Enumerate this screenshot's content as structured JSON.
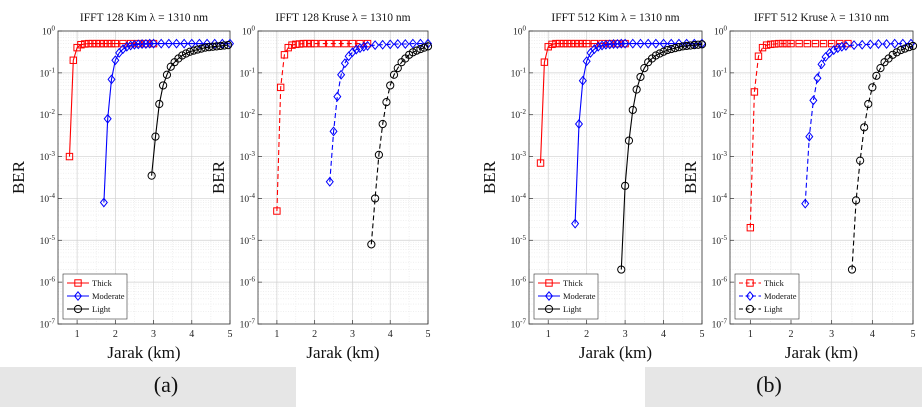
{
  "captions": [
    "(a)",
    "(b)"
  ],
  "chart_data": [
    {
      "type": "line",
      "title": "IFFT 128 Kim λ = 1310 nm",
      "xlabel": "Jarak (km)",
      "ylabel": "BER",
      "xlim": [
        0.5,
        5
      ],
      "ylim": [
        1e-07,
        1
      ],
      "yscale": "log",
      "xticks": [
        "1",
        "2",
        "3",
        "4",
        "5"
      ],
      "yticks": [
        "10^-7",
        "10^-6",
        "10^-5",
        "10^-4",
        "10^-3",
        "10^-2",
        "10^-1",
        "10^0"
      ],
      "grid": true,
      "legend_position": "bottom-left",
      "series": [
        {
          "name": "Thick",
          "color": "#ff0000",
          "marker": "square",
          "dash": "solid",
          "x": [
            0.8,
            0.9,
            1.0,
            1.1,
            1.2,
            1.3,
            1.4,
            1.5,
            1.6,
            1.7,
            1.8,
            1.9,
            2.0,
            2.2,
            2.4,
            2.6,
            2.8,
            3.0
          ],
          "y": [
            0.001,
            0.2,
            0.4,
            0.47,
            0.49,
            0.5,
            0.5,
            0.5,
            0.5,
            0.5,
            0.5,
            0.5,
            0.5,
            0.5,
            0.5,
            0.5,
            0.5,
            0.5
          ]
        },
        {
          "name": "Moderate",
          "color": "#0000ff",
          "marker": "diamond",
          "dash": "solid",
          "x": [
            1.7,
            1.8,
            1.9,
            2.0,
            2.1,
            2.2,
            2.3,
            2.4,
            2.5,
            2.6,
            2.7,
            2.8,
            2.9,
            3.0,
            3.2,
            3.4,
            3.6,
            3.8,
            4.0,
            4.2,
            4.4,
            4.6,
            4.8,
            5.0
          ],
          "y": [
            8e-05,
            0.008,
            0.07,
            0.2,
            0.3,
            0.37,
            0.42,
            0.45,
            0.47,
            0.48,
            0.49,
            0.49,
            0.5,
            0.5,
            0.5,
            0.5,
            0.5,
            0.5,
            0.5,
            0.5,
            0.5,
            0.5,
            0.5,
            0.5
          ]
        },
        {
          "name": "Light",
          "color": "#000000",
          "marker": "circle",
          "dash": "solid",
          "x": [
            2.95,
            3.05,
            3.15,
            3.25,
            3.35,
            3.45,
            3.55,
            3.65,
            3.75,
            3.85,
            3.95,
            4.05,
            4.15,
            4.25,
            4.35,
            4.45,
            4.55,
            4.65,
            4.75,
            4.85,
            4.95
          ],
          "y": [
            0.00035,
            0.003,
            0.018,
            0.05,
            0.09,
            0.14,
            0.18,
            0.22,
            0.26,
            0.29,
            0.32,
            0.34,
            0.36,
            0.38,
            0.4,
            0.41,
            0.42,
            0.43,
            0.44,
            0.45,
            0.46
          ]
        }
      ]
    },
    {
      "type": "line",
      "title": "IFFT 128 Kruse λ = 1310 nm",
      "xlabel": "Jarak (km)",
      "ylabel": "BER",
      "xlim": [
        0.5,
        5
      ],
      "ylim": [
        1e-07,
        1
      ],
      "yscale": "log",
      "xticks": [
        "1",
        "2",
        "3",
        "4",
        "5"
      ],
      "yticks": [
        "10^-7",
        "10^-6",
        "10^-5",
        "10^-4",
        "10^-3",
        "10^-2",
        "10^-1",
        "10^0"
      ],
      "grid": true,
      "series": [
        {
          "name": "Thick",
          "color": "#ff0000",
          "marker": "square",
          "dash": "dashed",
          "x": [
            1.0,
            1.1,
            1.2,
            1.3,
            1.4,
            1.5,
            1.6,
            1.7,
            1.8,
            1.9,
            2.0,
            2.2,
            2.4,
            2.6,
            2.8,
            3.0,
            3.2,
            3.4
          ],
          "y": [
            5e-05,
            0.045,
            0.27,
            0.4,
            0.46,
            0.48,
            0.49,
            0.5,
            0.5,
            0.5,
            0.5,
            0.5,
            0.5,
            0.5,
            0.5,
            0.5,
            0.5,
            0.5
          ]
        },
        {
          "name": "Moderate",
          "color": "#0000ff",
          "marker": "diamond",
          "dash": "dashed",
          "x": [
            2.4,
            2.5,
            2.6,
            2.7,
            2.8,
            2.9,
            3.0,
            3.1,
            3.2,
            3.3,
            3.4,
            3.6,
            3.8,
            4.0,
            4.2,
            4.4,
            4.6,
            4.8,
            5.0
          ],
          "y": [
            0.00025,
            0.004,
            0.027,
            0.09,
            0.17,
            0.25,
            0.31,
            0.36,
            0.39,
            0.42,
            0.44,
            0.46,
            0.47,
            0.48,
            0.49,
            0.49,
            0.5,
            0.5,
            0.5
          ]
        },
        {
          "name": "Light",
          "color": "#000000",
          "marker": "circle",
          "dash": "dashed",
          "x": [
            3.5,
            3.6,
            3.7,
            3.8,
            3.9,
            4.0,
            4.1,
            4.2,
            4.3,
            4.4,
            4.5,
            4.6,
            4.7,
            4.8,
            4.9,
            5.0
          ],
          "y": [
            8e-06,
            0.0001,
            0.0011,
            0.006,
            0.02,
            0.05,
            0.09,
            0.13,
            0.18,
            0.22,
            0.27,
            0.31,
            0.34,
            0.37,
            0.4,
            0.43
          ]
        }
      ]
    },
    {
      "type": "line",
      "title": "IFFT 512 Kim λ = 1310 nm",
      "xlabel": "Jarak (km)",
      "ylabel": "BER",
      "xlim": [
        0.5,
        5
      ],
      "ylim": [
        1e-07,
        1
      ],
      "yscale": "log",
      "xticks": [
        "1",
        "2",
        "3",
        "4",
        "5"
      ],
      "yticks": [
        "10^-7",
        "10^-6",
        "10^-5",
        "10^-4",
        "10^-3",
        "10^-2",
        "10^-1",
        "10^0"
      ],
      "grid": true,
      "legend_position": "bottom-left",
      "series": [
        {
          "name": "Thick",
          "color": "#ff0000",
          "marker": "square",
          "dash": "solid",
          "x": [
            0.8,
            0.9,
            1.0,
            1.1,
            1.2,
            1.3,
            1.4,
            1.5,
            1.6,
            1.7,
            1.8,
            1.9,
            2.0,
            2.2,
            2.4,
            2.6,
            2.8,
            3.0
          ],
          "y": [
            0.0007,
            0.18,
            0.42,
            0.48,
            0.5,
            0.5,
            0.5,
            0.5,
            0.5,
            0.5,
            0.5,
            0.5,
            0.5,
            0.5,
            0.5,
            0.5,
            0.5,
            0.5
          ]
        },
        {
          "name": "Moderate",
          "color": "#0000ff",
          "marker": "diamond",
          "dash": "solid",
          "x": [
            1.7,
            1.8,
            1.9,
            2.0,
            2.1,
            2.2,
            2.3,
            2.4,
            2.5,
            2.6,
            2.7,
            2.8,
            2.9,
            3.0,
            3.2,
            3.4,
            3.6,
            3.8,
            4.0,
            4.2,
            4.4,
            4.6,
            4.8,
            5.0
          ],
          "y": [
            2.5e-05,
            0.006,
            0.065,
            0.19,
            0.3,
            0.37,
            0.42,
            0.45,
            0.47,
            0.48,
            0.49,
            0.49,
            0.5,
            0.5,
            0.5,
            0.5,
            0.5,
            0.5,
            0.5,
            0.5,
            0.5,
            0.5,
            0.5,
            0.5
          ]
        },
        {
          "name": "Light",
          "color": "#000000",
          "marker": "circle",
          "dash": "solid",
          "x": [
            2.9,
            3.0,
            3.1,
            3.2,
            3.3,
            3.4,
            3.5,
            3.6,
            3.7,
            3.8,
            3.9,
            4.0,
            4.1,
            4.2,
            4.3,
            4.4,
            4.5,
            4.6,
            4.7,
            4.8,
            4.9,
            5.0
          ],
          "y": [
            2e-06,
            0.0002,
            0.0024,
            0.013,
            0.04,
            0.08,
            0.13,
            0.18,
            0.22,
            0.26,
            0.29,
            0.32,
            0.35,
            0.37,
            0.39,
            0.41,
            0.43,
            0.44,
            0.45,
            0.46,
            0.47,
            0.48
          ]
        }
      ]
    },
    {
      "type": "line",
      "title": "IFFT 512 Kruse λ = 1310 nm",
      "xlabel": "Jarak (km)",
      "ylabel": "BER",
      "xlim": [
        0.5,
        5
      ],
      "ylim": [
        1e-07,
        1
      ],
      "yscale": "log",
      "xticks": [
        "1",
        "2",
        "3",
        "4",
        "5"
      ],
      "yticks": [
        "10^-7",
        "10^-6",
        "10^-5",
        "10^-4",
        "10^-3",
        "10^-2",
        "10^-1",
        "10^0"
      ],
      "grid": true,
      "legend_position": "bottom-left",
      "series": [
        {
          "name": "Thick",
          "color": "#ff0000",
          "marker": "square",
          "dash": "dashed",
          "x": [
            1.0,
            1.1,
            1.2,
            1.3,
            1.4,
            1.5,
            1.6,
            1.7,
            1.8,
            1.9,
            2.0,
            2.2,
            2.4,
            2.6,
            2.8,
            3.0,
            3.2,
            3.4
          ],
          "y": [
            2e-05,
            0.035,
            0.25,
            0.4,
            0.46,
            0.48,
            0.49,
            0.5,
            0.5,
            0.5,
            0.5,
            0.5,
            0.5,
            0.5,
            0.5,
            0.5,
            0.5,
            0.5
          ]
        },
        {
          "name": "Moderate",
          "color": "#0000ff",
          "marker": "diamond",
          "dash": "dashed",
          "x": [
            2.35,
            2.45,
            2.55,
            2.65,
            2.75,
            2.85,
            2.95,
            3.05,
            3.15,
            3.25,
            3.35,
            3.55,
            3.75,
            3.95,
            4.15,
            4.35,
            4.55,
            4.75,
            4.95
          ],
          "y": [
            7.5e-05,
            0.003,
            0.022,
            0.075,
            0.16,
            0.24,
            0.3,
            0.35,
            0.39,
            0.42,
            0.44,
            0.46,
            0.47,
            0.48,
            0.49,
            0.49,
            0.5,
            0.5,
            0.5
          ]
        },
        {
          "name": "Light",
          "color": "#000000",
          "marker": "circle",
          "dash": "dashed",
          "x": [
            3.5,
            3.6,
            3.7,
            3.8,
            3.9,
            4.0,
            4.1,
            4.2,
            4.3,
            4.4,
            4.5,
            4.6,
            4.7,
            4.8,
            4.9,
            5.0
          ],
          "y": [
            2e-06,
            9e-05,
            0.0008,
            0.005,
            0.018,
            0.045,
            0.085,
            0.13,
            0.18,
            0.22,
            0.27,
            0.31,
            0.35,
            0.38,
            0.41,
            0.44
          ]
        }
      ]
    }
  ]
}
